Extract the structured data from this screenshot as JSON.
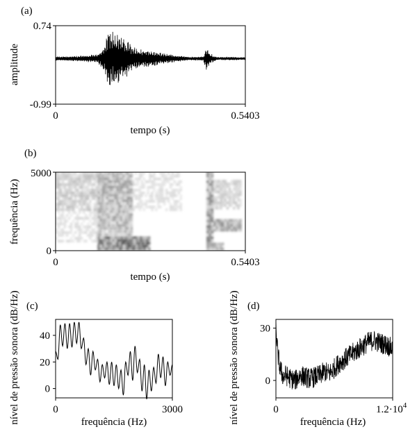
{
  "chart_data": [
    {
      "panel": "(a)",
      "type": "line",
      "kind": "waveform",
      "xlabel": "tempo (s)",
      "ylabel": "amplitude",
      "xlim": [
        0,
        0.5403
      ],
      "ylim": [
        -0.99,
        0.74
      ],
      "xticks": [
        "0",
        "0.5403"
      ],
      "yticks": [
        "0.74",
        "-0.99"
      ],
      "envelope": {
        "x": [
          0,
          0.06,
          0.12,
          0.14,
          0.15,
          0.16,
          0.18,
          0.2,
          0.22,
          0.25,
          0.28,
          0.31,
          0.34,
          0.38,
          0.42,
          0.43,
          0.44,
          0.46,
          0.5,
          0.5403
        ],
        "amplitude": [
          0.05,
          0.06,
          0.1,
          0.3,
          0.7,
          0.66,
          0.55,
          0.42,
          0.3,
          0.2,
          0.18,
          0.12,
          0.08,
          0.04,
          0.05,
          0.3,
          0.12,
          0.04,
          0.04,
          0.03
        ]
      },
      "grid": false
    },
    {
      "panel": "(b)",
      "type": "heatmap",
      "kind": "spectrogram",
      "xlabel": "tempo (s)",
      "ylabel": "frequência (Hz)",
      "xlim": [
        0,
        0.5403
      ],
      "ylim": [
        0,
        5000
      ],
      "xticks": [
        "0",
        "0.5403"
      ],
      "yticks": [
        "5000",
        "0"
      ],
      "energy_regions": [
        {
          "t": [
            0.0,
            0.12
          ],
          "f": [
            2500,
            5000
          ],
          "level": 0.35
        },
        {
          "t": [
            0.0,
            0.12
          ],
          "f": [
            500,
            2500
          ],
          "level": 0.2
        },
        {
          "t": [
            0.12,
            0.22
          ],
          "f": [
            1500,
            5000
          ],
          "level": 0.55
        },
        {
          "t": [
            0.12,
            0.27
          ],
          "f": [
            0,
            900
          ],
          "level": 0.95
        },
        {
          "t": [
            0.12,
            0.22
          ],
          "f": [
            900,
            1500
          ],
          "level": 0.45
        },
        {
          "t": [
            0.22,
            0.36
          ],
          "f": [
            2500,
            5000
          ],
          "level": 0.2
        },
        {
          "t": [
            0.43,
            0.45
          ],
          "f": [
            0,
            5000
          ],
          "level": 0.7
        },
        {
          "t": [
            0.45,
            0.53
          ],
          "f": [
            1200,
            2000
          ],
          "level": 0.6
        },
        {
          "t": [
            0.45,
            0.53
          ],
          "f": [
            2600,
            4500
          ],
          "level": 0.3
        },
        {
          "t": [
            0.44,
            0.48
          ],
          "f": [
            0,
            500
          ],
          "level": 0.5
        }
      ],
      "grid": false
    },
    {
      "panel": "(c)",
      "type": "line",
      "kind": "spectrum",
      "xlabel": "frequência (Hz)",
      "ylabel": "nível de pressão sonora (dB/Hz)",
      "xlim": [
        0,
        3000
      ],
      "ylim": [
        -7,
        52
      ],
      "xticks": [
        "0",
        "3000"
      ],
      "yticks": [
        "40",
        "20",
        "0"
      ],
      "series": [
        {
          "x": [
            0,
            60,
            120,
            180,
            240,
            300,
            360,
            420,
            480,
            540,
            600,
            660,
            720,
            780,
            840,
            900,
            960,
            1020,
            1080,
            1140,
            1200,
            1260,
            1320,
            1380,
            1440,
            1500,
            1560,
            1620,
            1680,
            1740,
            1800,
            1860,
            1920,
            1980,
            2040,
            2100,
            2160,
            2220,
            2280,
            2340,
            2400,
            2460,
            2520,
            2580,
            2640,
            2700,
            2760,
            2820,
            2880,
            2940,
            3000
          ],
          "values": [
            28,
            22,
            48,
            32,
            49,
            30,
            49,
            31,
            50,
            34,
            50,
            30,
            38,
            18,
            30,
            10,
            28,
            14,
            22,
            5,
            18,
            8,
            20,
            3,
            20,
            2,
            18,
            0,
            14,
            -5,
            20,
            10,
            28,
            6,
            32,
            12,
            22,
            -2,
            18,
            -8,
            14,
            -2,
            16,
            4,
            26,
            8,
            24,
            2,
            20,
            10,
            18
          ]
        }
      ],
      "grid": false
    },
    {
      "panel": "(d)",
      "type": "line",
      "kind": "spectrum",
      "xlabel": "frequência (Hz)",
      "ylabel": "nível de pressão sonora (dB/Hz)",
      "xlim": [
        0,
        12000
      ],
      "ylim": [
        -10,
        35
      ],
      "xticks": [
        "0",
        "1.2·10"
      ],
      "xtick_exponent": "4",
      "yticks": [
        "30",
        "0"
      ],
      "series": [
        {
          "x": [
            0,
            100,
            200,
            400,
            600,
            800,
            1000,
            1500,
            2000,
            2500,
            3000,
            3500,
            4000,
            4500,
            5000,
            5500,
            6000,
            6500,
            7000,
            7500,
            8000,
            8500,
            9000,
            9500,
            10000,
            10500,
            11000,
            11500,
            12000
          ],
          "values": [
            32,
            22,
            15,
            8,
            4,
            2,
            3,
            1,
            0,
            3,
            2,
            1,
            2,
            3,
            5,
            4,
            7,
            10,
            12,
            14,
            16,
            18,
            20,
            22,
            23,
            22,
            21,
            20,
            18
          ]
        }
      ],
      "grid": false
    }
  ]
}
